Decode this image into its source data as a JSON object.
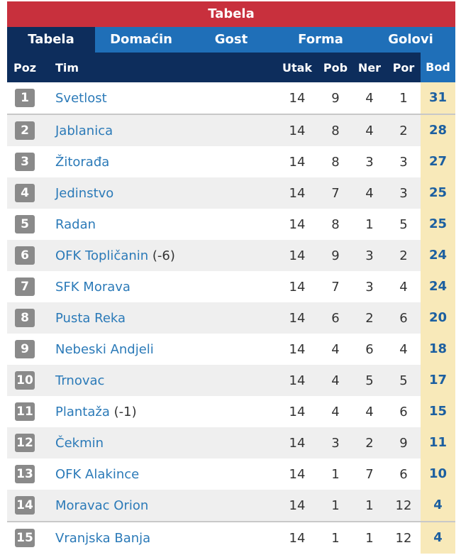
{
  "title": "Tabela",
  "tabs": [
    {
      "label": "Tabela",
      "active": true
    },
    {
      "label": "Domaćin",
      "active": false
    },
    {
      "label": "Gost",
      "active": false
    },
    {
      "label": "Forma",
      "active": false
    },
    {
      "label": "Golovi",
      "active": false
    }
  ],
  "columns": {
    "poz": "Poz",
    "tim": "Tim",
    "utak": "Utak",
    "pob": "Pob",
    "ner": "Ner",
    "por": "Por",
    "bod": "Bod"
  },
  "rows": [
    {
      "poz": "1",
      "tim": "Svetlost",
      "penalty": "",
      "utak": "14",
      "pob": "9",
      "ner": "4",
      "por": "1",
      "bod": "31"
    },
    {
      "poz": "2",
      "tim": "Jablanica",
      "penalty": "",
      "utak": "14",
      "pob": "8",
      "ner": "4",
      "por": "2",
      "bod": "28"
    },
    {
      "poz": "3",
      "tim": "Žitorađa",
      "penalty": "",
      "utak": "14",
      "pob": "8",
      "ner": "3",
      "por": "3",
      "bod": "27"
    },
    {
      "poz": "4",
      "tim": "Jedinstvo",
      "penalty": "",
      "utak": "14",
      "pob": "7",
      "ner": "4",
      "por": "3",
      "bod": "25"
    },
    {
      "poz": "5",
      "tim": "Radan",
      "penalty": "",
      "utak": "14",
      "pob": "8",
      "ner": "1",
      "por": "5",
      "bod": "25"
    },
    {
      "poz": "6",
      "tim": "OFK Topličanin",
      "penalty": "(-6)",
      "utak": "14",
      "pob": "9",
      "ner": "3",
      "por": "2",
      "bod": "24"
    },
    {
      "poz": "7",
      "tim": "SFK Morava",
      "penalty": "",
      "utak": "14",
      "pob": "7",
      "ner": "3",
      "por": "4",
      "bod": "24"
    },
    {
      "poz": "8",
      "tim": "Pusta Reka",
      "penalty": "",
      "utak": "14",
      "pob": "6",
      "ner": "2",
      "por": "6",
      "bod": "20"
    },
    {
      "poz": "9",
      "tim": "Nebeski Andjeli",
      "penalty": "",
      "utak": "14",
      "pob": "4",
      "ner": "6",
      "por": "4",
      "bod": "18"
    },
    {
      "poz": "10",
      "tim": "Trnovac",
      "penalty": "",
      "utak": "14",
      "pob": "4",
      "ner": "5",
      "por": "5",
      "bod": "17"
    },
    {
      "poz": "11",
      "tim": "Plantaža",
      "penalty": "(-1)",
      "utak": "14",
      "pob": "4",
      "ner": "4",
      "por": "6",
      "bod": "15"
    },
    {
      "poz": "12",
      "tim": "Čekmin",
      "penalty": "",
      "utak": "14",
      "pob": "3",
      "ner": "2",
      "por": "9",
      "bod": "11"
    },
    {
      "poz": "13",
      "tim": "OFK Alakince",
      "penalty": "",
      "utak": "14",
      "pob": "1",
      "ner": "7",
      "por": "6",
      "bod": "10"
    },
    {
      "poz": "14",
      "tim": "Moravac Orion",
      "penalty": "",
      "utak": "14",
      "pob": "1",
      "ner": "1",
      "por": "12",
      "bod": "4"
    },
    {
      "poz": "15",
      "tim": "Vranjska Banja",
      "penalty": "",
      "utak": "14",
      "pob": "1",
      "ner": "1",
      "por": "12",
      "bod": "4"
    }
  ]
}
